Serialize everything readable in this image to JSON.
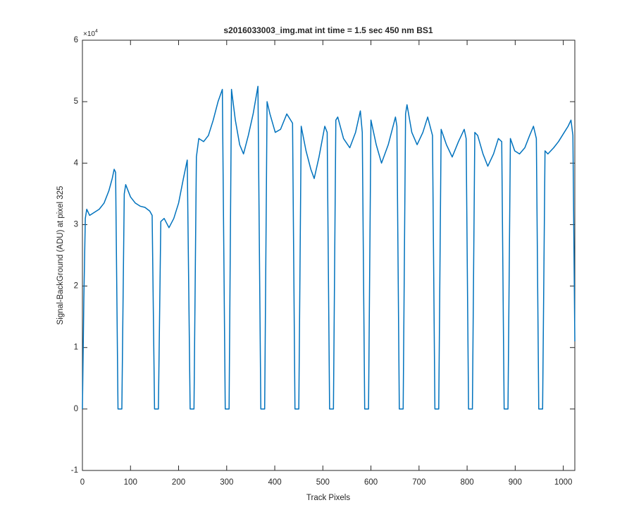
{
  "chart_data": {
    "type": "line",
    "title": "s2016033003_img.mat int time = 1.5 sec  450 nm BS1",
    "x_label": "Track Pixels",
    "y_label": "Signal-BackGround (ADU) at pixel 325",
    "y_multiplier": {
      "base": "×10",
      "exponent": "4"
    },
    "xlim": [
      0,
      1024
    ],
    "ylim": [
      -1,
      6
    ],
    "xticks": [
      0,
      100,
      200,
      300,
      400,
      500,
      600,
      700,
      800,
      900,
      1000
    ],
    "yticks": [
      -1,
      0,
      1,
      2,
      3,
      4,
      5,
      6
    ],
    "grid": false,
    "series": [
      {
        "color": "#0072bd",
        "x": [
          0,
          3,
          6,
          9,
          15,
          25,
          35,
          45,
          55,
          62,
          66,
          69,
          74,
          82,
          87,
          90,
          100,
          110,
          120,
          130,
          140,
          145,
          150,
          158,
          163,
          170,
          180,
          190,
          200,
          210,
          218,
          224,
          232,
          237,
          242,
          252,
          262,
          272,
          282,
          291,
          297,
          305,
          310,
          318,
          327,
          335,
          345,
          355,
          365,
          371,
          379,
          384,
          390,
          401,
          412,
          425,
          437,
          442,
          450,
          455,
          465,
          475,
          482,
          492,
          504,
          509,
          514,
          522,
          527,
          531,
          543,
          556,
          568,
          578,
          582,
          587,
          595,
          600,
          611,
          622,
          636,
          651,
          654,
          659,
          667,
          672,
          675,
          685,
          696,
          708,
          718,
          728,
          733,
          741,
          746,
          757,
          769,
          782,
          794,
          798,
          803,
          811,
          816,
          822,
          833,
          843,
          855,
          865,
          872,
          877,
          885,
          890,
          899,
          909,
          920,
          930,
          938,
          944,
          949,
          957,
          962,
          968,
          980,
          990,
          1002,
          1010,
          1016,
          1020,
          1024
        ],
        "values": [
          0,
          1.8,
          3.1,
          3.25,
          3.15,
          3.2,
          3.25,
          3.35,
          3.55,
          3.75,
          3.9,
          3.85,
          0,
          0,
          3.5,
          3.65,
          3.45,
          3.35,
          3.3,
          3.28,
          3.22,
          3.15,
          0,
          0,
          3.05,
          3.1,
          2.95,
          3.1,
          3.35,
          3.75,
          4.05,
          0,
          0,
          4.1,
          4.4,
          4.35,
          4.45,
          4.7,
          5.0,
          5.2,
          0,
          0,
          5.2,
          4.7,
          4.3,
          4.15,
          4.45,
          4.8,
          5.25,
          0,
          0,
          5.0,
          4.8,
          4.5,
          4.55,
          4.8,
          4.65,
          0,
          0,
          4.6,
          4.2,
          3.9,
          3.75,
          4.1,
          4.6,
          4.5,
          0,
          0,
          4.7,
          4.75,
          4.4,
          4.25,
          4.5,
          4.85,
          4.5,
          0,
          0,
          4.7,
          4.3,
          4.0,
          4.3,
          4.75,
          4.6,
          0,
          0,
          4.8,
          4.95,
          4.5,
          4.3,
          4.5,
          4.75,
          4.45,
          0,
          0,
          4.55,
          4.3,
          4.1,
          4.35,
          4.55,
          4.4,
          0,
          0,
          4.5,
          4.45,
          4.15,
          3.95,
          4.15,
          4.4,
          4.35,
          0,
          0,
          4.4,
          4.2,
          4.15,
          4.25,
          4.45,
          4.6,
          4.4,
          0,
          0,
          4.2,
          4.15,
          4.25,
          4.35,
          4.5,
          4.6,
          4.7,
          4.45,
          1.1
        ]
      }
    ]
  }
}
